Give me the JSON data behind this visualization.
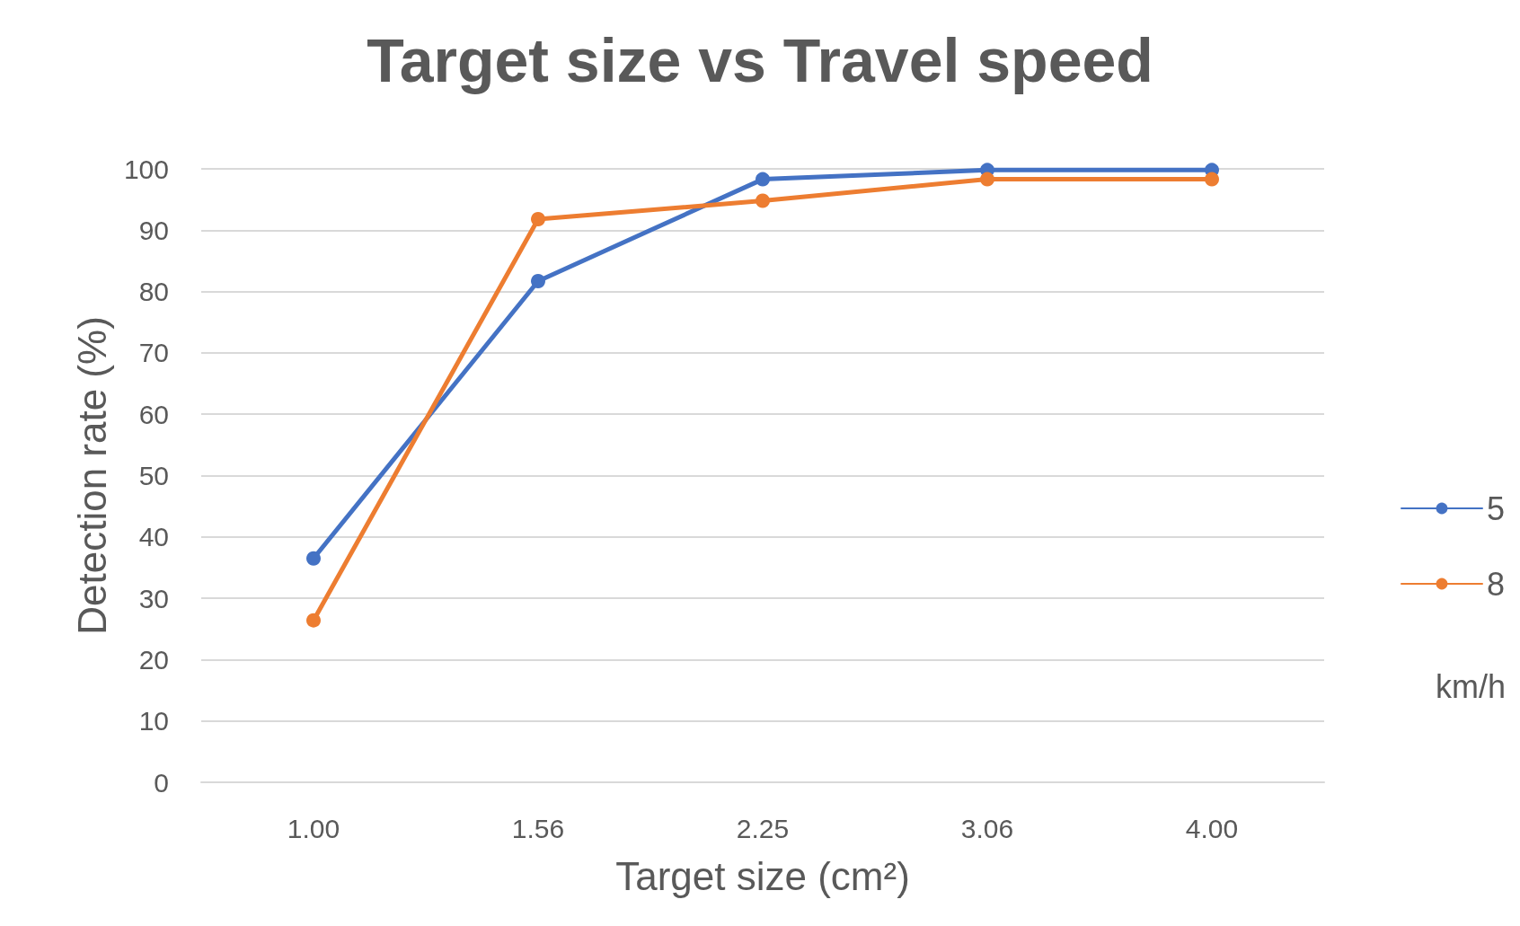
{
  "chart_data": {
    "type": "line",
    "title": "Target size vs Travel speed",
    "xlabel": "Target size (cm²)",
    "ylabel": "Detection rate (%)",
    "legend_title": "km/h",
    "categories": [
      "1.00",
      "1.56",
      "2.25",
      "3.06",
      "4.00"
    ],
    "series": [
      {
        "name": "5",
        "color": "#4472c4",
        "values": [
          36.5,
          81.7,
          98.3,
          99.8,
          99.8
        ]
      },
      {
        "name": "8",
        "color": "#ed7d31",
        "values": [
          26.4,
          91.8,
          94.8,
          98.3,
          98.3
        ]
      }
    ],
    "ylim": [
      0,
      100
    ],
    "yticks": [
      0,
      10,
      20,
      30,
      40,
      50,
      60,
      70,
      80,
      90,
      100
    ],
    "grid": "y",
    "legend": "right",
    "marker": "circle",
    "line_style": "solid"
  }
}
